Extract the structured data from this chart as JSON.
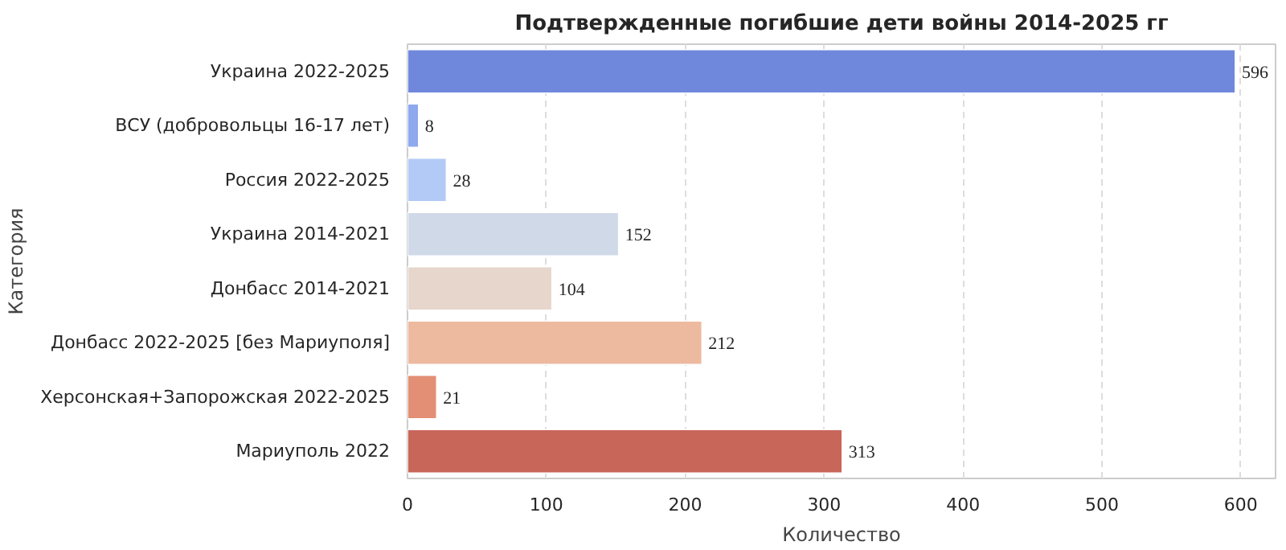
{
  "chart_data": {
    "type": "bar",
    "orientation": "horizontal",
    "title": "Подтвержденные погибшие дети войны 2014-2025 гг",
    "xlabel": "Количество",
    "ylabel": "Категория",
    "categories": [
      "Украина 2022-2025",
      "ВСУ (добровольцы 16-17 лет)",
      "Россия 2022-2025",
      "Украина 2014-2021",
      "Донбасс 2014-2021",
      "Донбасс 2022-2025 [без Мариуполя]",
      "Херсонская+Запорожская 2022-2025",
      "Мариуполь 2022"
    ],
    "values": [
      596,
      8,
      28,
      152,
      104,
      212,
      21,
      313
    ],
    "colors": [
      "#6f88dc",
      "#8fa9ef",
      "#b3caf6",
      "#d0d9e8",
      "#e6d6cc",
      "#edbaa0",
      "#e38f75",
      "#c9665a"
    ],
    "xlim": [
      0,
      625
    ],
    "xticks": [
      0,
      100,
      200,
      300,
      400,
      500,
      600
    ],
    "grid": "x",
    "data_labels": true
  }
}
